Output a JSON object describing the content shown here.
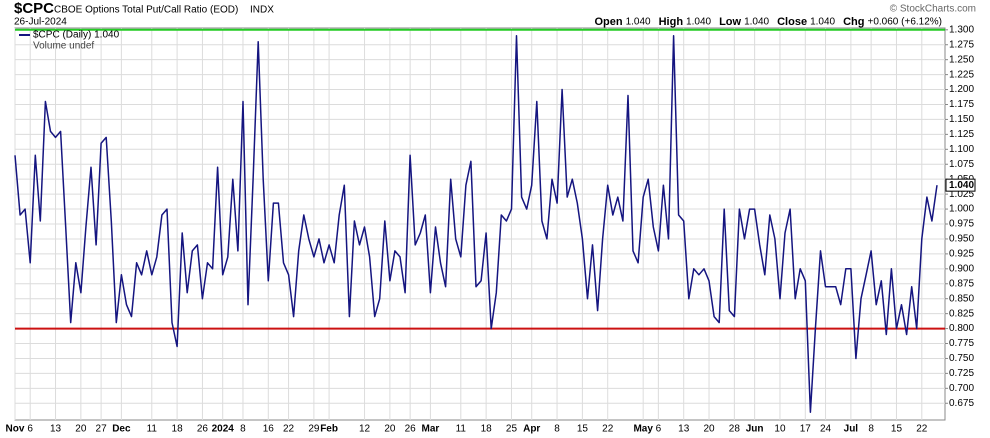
{
  "chart_data": {
    "type": "line",
    "title": "$CPC",
    "subtitle": "CBOE Options Total Put/Call Ratio (EOD)",
    "exchange": "INDX",
    "date": "26-Jul-2024",
    "quote": [
      {
        "label": "Open",
        "value": "1.040"
      },
      {
        "label": "High",
        "value": "1.040"
      },
      {
        "label": "Low",
        "value": "1.040"
      },
      {
        "label": "Close",
        "value": "1.040"
      },
      {
        "label": "Chg",
        "value": "+0.060 (+6.12%)"
      }
    ],
    "copyright": "© StockCharts.com",
    "legend_volume": "Volume undef",
    "last_label": "1.040",
    "categories": [
      "Nov",
      null,
      null,
      "6",
      null,
      null,
      null,
      null,
      "13",
      null,
      null,
      null,
      null,
      "20",
      null,
      null,
      null,
      "27",
      null,
      null,
      null,
      "Dec",
      null,
      null,
      null,
      null,
      null,
      "11",
      null,
      null,
      null,
      null,
      "18",
      null,
      null,
      null,
      null,
      "26",
      null,
      null,
      null,
      "2024",
      null,
      null,
      null,
      "8",
      null,
      null,
      null,
      null,
      "16",
      null,
      null,
      null,
      "22",
      null,
      null,
      null,
      null,
      "29",
      null,
      null,
      "Feb",
      null,
      null,
      null,
      null,
      null,
      null,
      "12",
      null,
      null,
      null,
      null,
      "20",
      null,
      null,
      null,
      "26",
      null,
      null,
      null,
      "Mar",
      null,
      null,
      null,
      null,
      null,
      "11",
      null,
      null,
      null,
      null,
      "18",
      null,
      null,
      null,
      null,
      "25",
      null,
      null,
      null,
      "Apr",
      null,
      null,
      null,
      null,
      "8",
      null,
      null,
      null,
      null,
      "15",
      null,
      null,
      null,
      null,
      "22",
      null,
      null,
      null,
      null,
      null,
      null,
      "May",
      null,
      null,
      "6",
      null,
      null,
      null,
      null,
      "13",
      null,
      null,
      null,
      null,
      "20",
      null,
      null,
      null,
      null,
      "28",
      null,
      null,
      null,
      "Jun",
      null,
      null,
      null,
      null,
      "10",
      null,
      null,
      null,
      null,
      "17",
      null,
      null,
      null,
      "24",
      null,
      null,
      null,
      null,
      "Jul",
      null,
      null,
      null,
      "8",
      null,
      null,
      null,
      null,
      "15",
      null,
      null,
      null,
      null,
      "22",
      null,
      null,
      null
    ],
    "series": [
      {
        "name": "$CPC (Daily) 1.040",
        "color": "#151580",
        "values": [
          1.09,
          0.99,
          1.0,
          0.91,
          1.09,
          0.98,
          1.18,
          1.13,
          1.12,
          1.13,
          0.97,
          0.81,
          0.91,
          0.86,
          0.97,
          1.07,
          0.94,
          1.11,
          1.12,
          0.98,
          0.81,
          0.89,
          0.84,
          0.82,
          0.91,
          0.89,
          0.93,
          0.89,
          0.92,
          0.99,
          1.0,
          0.81,
          0.77,
          0.96,
          0.86,
          0.93,
          0.94,
          0.85,
          0.91,
          0.9,
          1.07,
          0.89,
          0.92,
          1.05,
          0.93,
          1.18,
          0.84,
          1.05,
          1.28,
          1.05,
          0.88,
          1.01,
          1.01,
          0.91,
          0.89,
          0.82,
          0.93,
          0.99,
          0.95,
          0.92,
          0.95,
          0.91,
          0.94,
          0.91,
          0.99,
          1.04,
          0.82,
          0.98,
          0.94,
          0.97,
          0.92,
          0.82,
          0.85,
          0.98,
          0.88,
          0.93,
          0.92,
          0.86,
          1.09,
          0.94,
          0.96,
          0.99,
          0.86,
          0.97,
          0.91,
          0.87,
          1.05,
          0.95,
          0.92,
          1.04,
          1.08,
          0.87,
          0.88,
          0.96,
          0.8,
          0.86,
          0.99,
          0.98,
          1.0,
          1.29,
          1.02,
          1.0,
          1.04,
          1.18,
          0.98,
          0.95,
          1.05,
          1.01,
          1.2,
          1.02,
          1.05,
          1.01,
          0.95,
          0.85,
          0.94,
          0.83,
          0.95,
          1.04,
          0.99,
          1.02,
          0.98,
          1.19,
          0.93,
          0.91,
          1.02,
          1.05,
          0.97,
          0.93,
          1.04,
          0.95,
          1.29,
          0.99,
          0.98,
          0.85,
          0.9,
          0.89,
          0.9,
          0.88,
          0.82,
          0.81,
          1.0,
          0.83,
          0.82,
          1.0,
          0.95,
          1.0,
          1.0,
          0.94,
          0.89,
          0.99,
          0.95,
          0.85,
          0.96,
          1.0,
          0.85,
          0.9,
          0.88,
          0.66,
          0.8,
          0.93,
          0.87,
          0.87,
          0.87,
          0.84,
          0.9,
          0.9,
          0.75,
          0.85,
          0.89,
          0.93,
          0.84,
          0.88,
          0.79,
          0.9,
          0.8,
          0.84,
          0.79,
          0.87,
          0.8,
          0.95,
          1.02,
          0.98,
          1.04
        ]
      }
    ],
    "hlines": [
      {
        "value": 1.3,
        "color": "#22cc22"
      },
      {
        "value": 0.8,
        "color": "#cc1111"
      }
    ],
    "ylim": [
      0.647,
      1.303
    ],
    "yticks": [
      {
        "value": 0.675,
        "label": "0.675"
      },
      {
        "value": 0.7,
        "label": "0.700"
      },
      {
        "value": 0.725,
        "label": "0.725"
      },
      {
        "value": 0.75,
        "label": "0.750"
      },
      {
        "value": 0.775,
        "label": "0.775"
      },
      {
        "value": 0.8,
        "label": "0.800"
      },
      {
        "value": 0.825,
        "label": "0.825"
      },
      {
        "value": 0.85,
        "label": "0.850"
      },
      {
        "value": 0.875,
        "label": "0.875"
      },
      {
        "value": 0.9,
        "label": "0.900"
      },
      {
        "value": 0.925,
        "label": "0.925"
      },
      {
        "value": 0.95,
        "label": "0.950"
      },
      {
        "value": 0.975,
        "label": "0.975"
      },
      {
        "value": 1,
        "label": "1.000"
      },
      {
        "value": 1.025,
        "label": "1.025"
      },
      {
        "value": 1.05,
        "label": "1.050"
      },
      {
        "value": 1.075,
        "label": "1.075"
      },
      {
        "value": 1.1,
        "label": "1.100"
      },
      {
        "value": 1.125,
        "label": "1.125"
      },
      {
        "value": 1.15,
        "label": "1.150"
      },
      {
        "value": 1.175,
        "label": "1.175"
      },
      {
        "value": 1.2,
        "label": "1.200"
      },
      {
        "value": 1.225,
        "label": "1.225"
      },
      {
        "value": 1.25,
        "label": "1.250"
      },
      {
        "value": 1.275,
        "label": "1.275"
      },
      {
        "value": 1.3,
        "label": "1.300"
      }
    ],
    "grid": true
  }
}
